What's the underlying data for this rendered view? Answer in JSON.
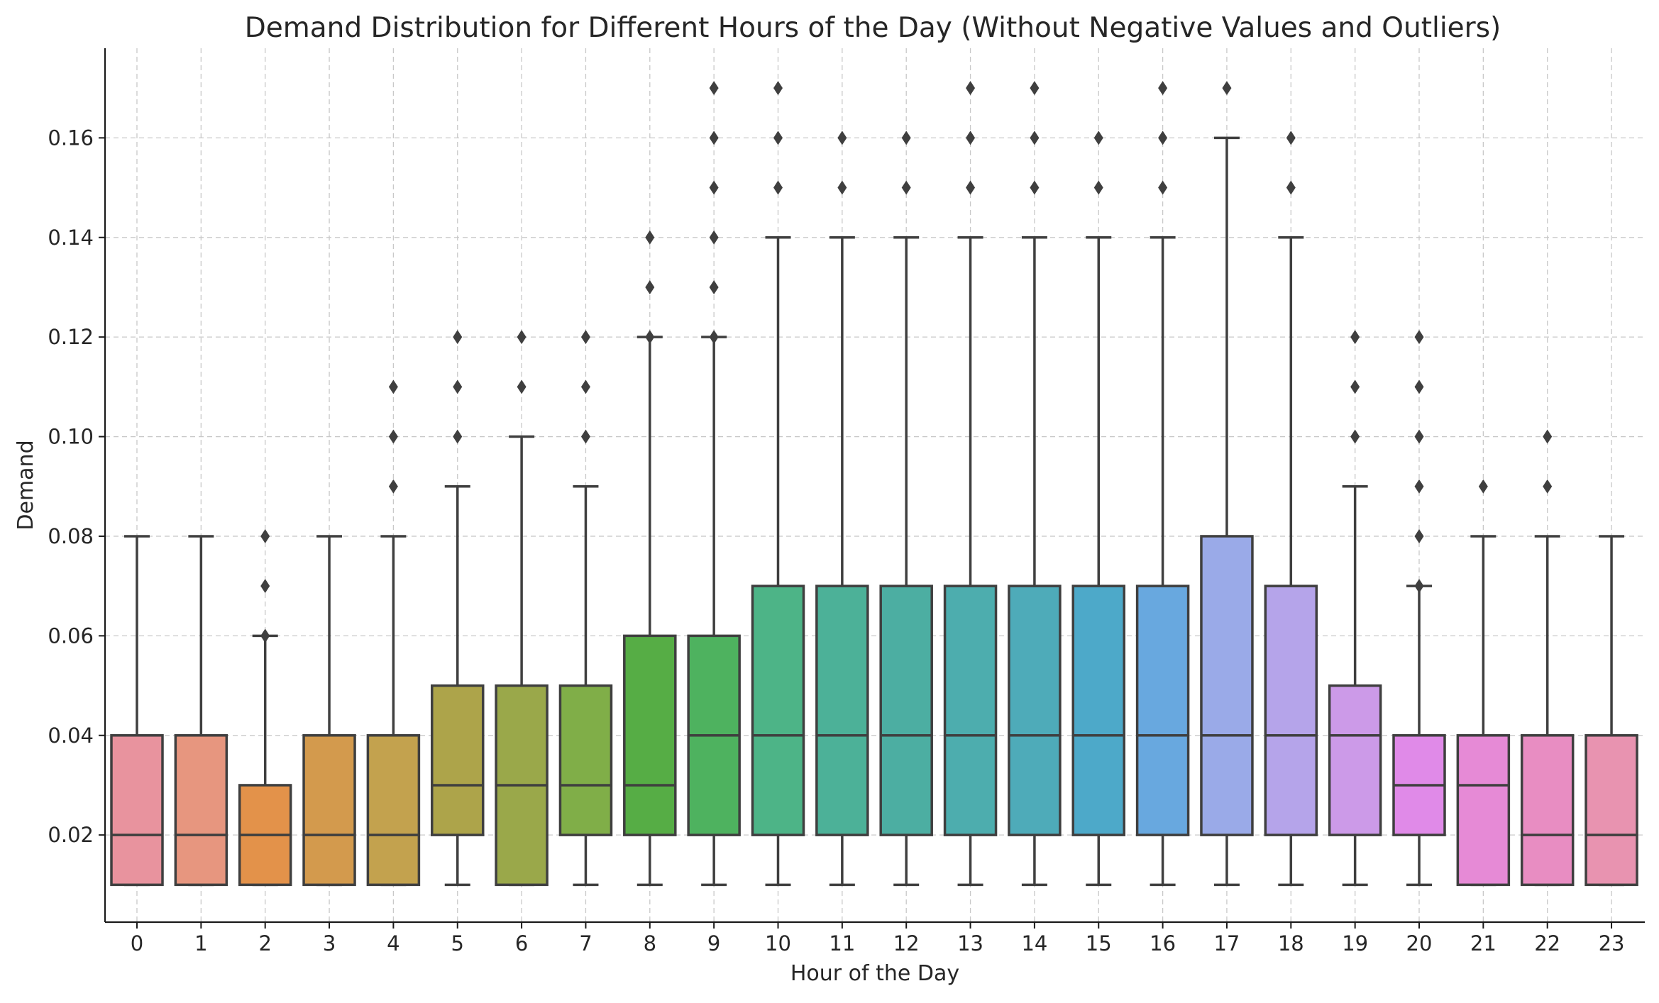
{
  "chart_data": {
    "type": "box",
    "title": "Demand Distribution for Different Hours of the Day (Without Negative Values and Outliers)",
    "xlabel": "Hour of the Day",
    "ylabel": "Demand",
    "ylim": [
      0.0025,
      0.178
    ],
    "yticks": [
      "0.02",
      "0.04",
      "0.06",
      "0.08",
      "0.10",
      "0.12",
      "0.14",
      "0.16"
    ],
    "ytick_values": [
      0.02,
      0.04,
      0.06,
      0.08,
      0.1,
      0.12,
      0.14,
      0.16
    ],
    "grid": true,
    "categories": [
      "0",
      "1",
      "2",
      "3",
      "4",
      "5",
      "6",
      "7",
      "8",
      "9",
      "10",
      "11",
      "12",
      "13",
      "14",
      "15",
      "16",
      "17",
      "18",
      "19",
      "20",
      "21",
      "22",
      "23"
    ],
    "boxes": [
      {
        "hour": "0",
        "whislo": 0.01,
        "q1": 0.01,
        "median": 0.02,
        "q3": 0.04,
        "whishi": 0.08,
        "fliers": [],
        "color": "#e8939e"
      },
      {
        "hour": "1",
        "whislo": 0.01,
        "q1": 0.01,
        "median": 0.02,
        "q3": 0.04,
        "whishi": 0.08,
        "fliers": [],
        "color": "#e7967f"
      },
      {
        "hour": "2",
        "whislo": 0.01,
        "q1": 0.01,
        "median": 0.02,
        "q3": 0.03,
        "whishi": 0.06,
        "fliers": [
          0.06,
          0.07,
          0.08
        ],
        "color": "#e3924a"
      },
      {
        "hour": "3",
        "whislo": 0.01,
        "q1": 0.01,
        "median": 0.02,
        "q3": 0.04,
        "whishi": 0.08,
        "fliers": [],
        "color": "#d39a4d"
      },
      {
        "hour": "4",
        "whislo": 0.01,
        "q1": 0.01,
        "median": 0.02,
        "q3": 0.04,
        "whishi": 0.08,
        "fliers": [
          0.09,
          0.1,
          0.11
        ],
        "color": "#c3a24e"
      },
      {
        "hour": "5",
        "whislo": 0.01,
        "q1": 0.02,
        "median": 0.03,
        "q3": 0.05,
        "whishi": 0.09,
        "fliers": [
          0.1,
          0.11,
          0.12
        ],
        "color": "#ada44a"
      },
      {
        "hour": "6",
        "whislo": 0.01,
        "q1": 0.01,
        "median": 0.03,
        "q3": 0.05,
        "whishi": 0.1,
        "fliers": [
          0.11,
          0.12
        ],
        "color": "#9aa84a"
      },
      {
        "hour": "7",
        "whislo": 0.01,
        "q1": 0.02,
        "median": 0.03,
        "q3": 0.05,
        "whishi": 0.09,
        "fliers": [
          0.1,
          0.11,
          0.12
        ],
        "color": "#80ae48"
      },
      {
        "hour": "8",
        "whislo": 0.01,
        "q1": 0.02,
        "median": 0.03,
        "q3": 0.06,
        "whishi": 0.12,
        "fliers": [
          0.12,
          0.13,
          0.14
        ],
        "color": "#56ad45"
      },
      {
        "hour": "9",
        "whislo": 0.01,
        "q1": 0.02,
        "median": 0.04,
        "q3": 0.06,
        "whishi": 0.12,
        "fliers": [
          0.12,
          0.13,
          0.14,
          0.15,
          0.16,
          0.17
        ],
        "color": "#4eb25f"
      },
      {
        "hour": "10",
        "whislo": 0.01,
        "q1": 0.02,
        "median": 0.04,
        "q3": 0.07,
        "whishi": 0.14,
        "fliers": [
          0.15,
          0.16,
          0.17
        ],
        "color": "#4db487"
      },
      {
        "hour": "11",
        "whislo": 0.01,
        "q1": 0.02,
        "median": 0.04,
        "q3": 0.07,
        "whishi": 0.14,
        "fliers": [
          0.15,
          0.16
        ],
        "color": "#4cb198"
      },
      {
        "hour": "12",
        "whislo": 0.01,
        "q1": 0.02,
        "median": 0.04,
        "q3": 0.07,
        "whishi": 0.14,
        "fliers": [
          0.15,
          0.16
        ],
        "color": "#4caea2"
      },
      {
        "hour": "13",
        "whislo": 0.01,
        "q1": 0.02,
        "median": 0.04,
        "q3": 0.07,
        "whishi": 0.14,
        "fliers": [
          0.15,
          0.16,
          0.17
        ],
        "color": "#4dadae"
      },
      {
        "hour": "14",
        "whislo": 0.01,
        "q1": 0.02,
        "median": 0.04,
        "q3": 0.07,
        "whishi": 0.14,
        "fliers": [
          0.15,
          0.16,
          0.17
        ],
        "color": "#4eabb9"
      },
      {
        "hour": "15",
        "whislo": 0.01,
        "q1": 0.02,
        "median": 0.04,
        "q3": 0.07,
        "whishi": 0.14,
        "fliers": [
          0.15,
          0.16
        ],
        "color": "#4da9c9"
      },
      {
        "hour": "16",
        "whislo": 0.01,
        "q1": 0.02,
        "median": 0.04,
        "q3": 0.07,
        "whishi": 0.14,
        "fliers": [
          0.15,
          0.16,
          0.17
        ],
        "color": "#68a8df"
      },
      {
        "hour": "17",
        "whislo": 0.01,
        "q1": 0.02,
        "median": 0.04,
        "q3": 0.08,
        "whishi": 0.16,
        "fliers": [
          0.17
        ],
        "color": "#9aaae8"
      },
      {
        "hour": "18",
        "whislo": 0.01,
        "q1": 0.02,
        "median": 0.04,
        "q3": 0.07,
        "whishi": 0.14,
        "fliers": [
          0.15,
          0.16
        ],
        "color": "#b5a4ea"
      },
      {
        "hour": "19",
        "whislo": 0.01,
        "q1": 0.02,
        "median": 0.04,
        "q3": 0.05,
        "whishi": 0.09,
        "fliers": [
          0.1,
          0.11,
          0.12
        ],
        "color": "#cc9ae8"
      },
      {
        "hour": "20",
        "whislo": 0.01,
        "q1": 0.02,
        "median": 0.03,
        "q3": 0.04,
        "whishi": 0.07,
        "fliers": [
          0.07,
          0.08,
          0.09,
          0.1,
          0.11,
          0.12
        ],
        "color": "#e08ae8"
      },
      {
        "hour": "21",
        "whislo": 0.01,
        "q1": 0.01,
        "median": 0.03,
        "q3": 0.04,
        "whishi": 0.08,
        "fliers": [
          0.09
        ],
        "color": "#e68ad6"
      },
      {
        "hour": "22",
        "whislo": 0.01,
        "q1": 0.01,
        "median": 0.02,
        "q3": 0.04,
        "whishi": 0.08,
        "fliers": [
          0.09,
          0.1
        ],
        "color": "#e88dc2"
      },
      {
        "hour": "23",
        "whislo": 0.01,
        "q1": 0.01,
        "median": 0.02,
        "q3": 0.04,
        "whishi": 0.08,
        "fliers": [],
        "color": "#e893b0"
      }
    ]
  }
}
